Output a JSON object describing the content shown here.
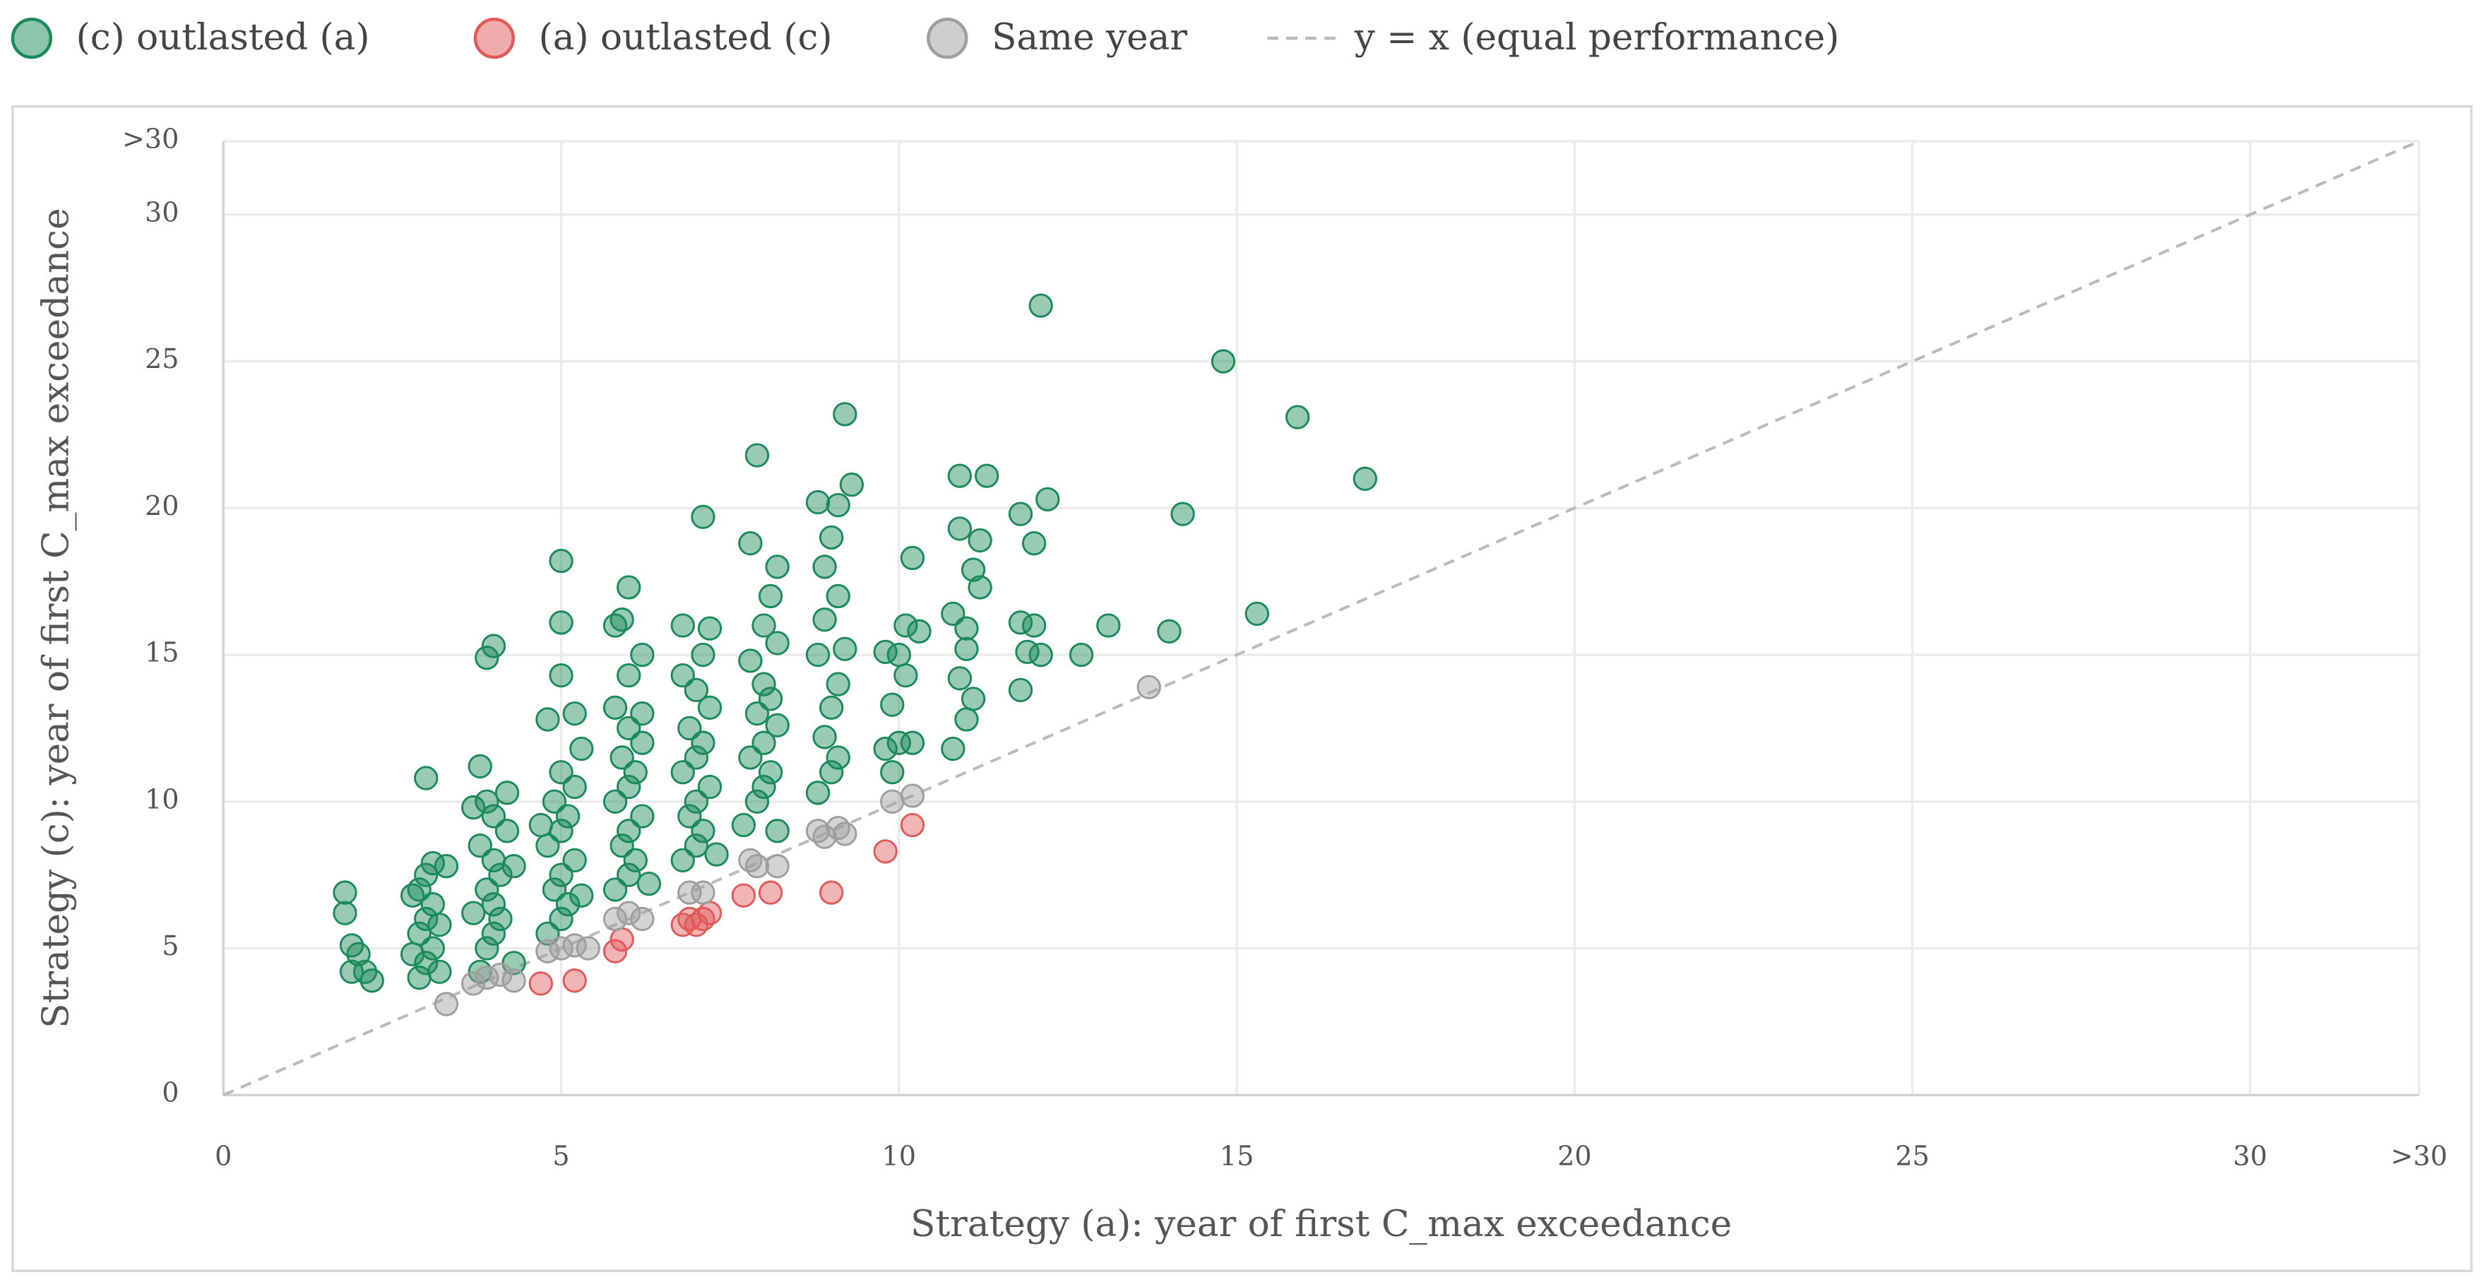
{
  "chart_data": {
    "type": "scatter",
    "xlabel": "Strategy (a): year of first C_max exceedance",
    "ylabel": "Strategy (c): year of first C_max exceedance",
    "xlim": [
      0,
      32.5
    ],
    "ylim": [
      0,
      32.5
    ],
    "xticks": [
      0,
      5,
      10,
      15,
      20,
      25,
      30,
      {
        "value": 32.5,
        "label": ">30"
      }
    ],
    "yticks": [
      0,
      5,
      10,
      15,
      20,
      25,
      30,
      {
        "value": 32.5,
        "label": ">30"
      }
    ],
    "grid": true,
    "legend": "top",
    "reference_line": {
      "label": "y = x (equal performance)",
      "color": "#bbbbbb"
    },
    "series": [
      {
        "name": "(c) outlasted (a)",
        "color": "#1b8a5a",
        "x": [
          1.8,
          1.8,
          1.9,
          1.9,
          2.1,
          2.2,
          2.0,
          2.9,
          3.0,
          3.1,
          2.9,
          3.0,
          3.1,
          2.9,
          3.0,
          3.1,
          3.3,
          3.2,
          2.8,
          3.2,
          2.8,
          3.0,
          3.8,
          3.9,
          4.0,
          4.1,
          4.0,
          3.9,
          4.1,
          4.0,
          3.8,
          4.2,
          4.0,
          3.9,
          4.2,
          3.8,
          3.9,
          4.0,
          4.3,
          3.7,
          4.3,
          3.7,
          4.8,
          5.0,
          5.1,
          4.9,
          5.0,
          5.2,
          4.8,
          5.0,
          5.1,
          4.9,
          5.2,
          5.0,
          5.3,
          4.8,
          5.2,
          5.0,
          5.0,
          5.0,
          5.3,
          4.7,
          5.8,
          6.0,
          6.1,
          5.9,
          6.0,
          6.2,
          5.8,
          6.0,
          6.1,
          5.9,
          6.2,
          6.0,
          5.8,
          6.2,
          6.0,
          6.2,
          5.8,
          5.9,
          6.0,
          6.3,
          6.8,
          7.0,
          7.1,
          6.9,
          7.0,
          7.2,
          6.8,
          7.0,
          7.1,
          6.9,
          7.2,
          7.0,
          6.8,
          7.1,
          6.8,
          7.2,
          7.1,
          7.3,
          7.7,
          7.9,
          8.0,
          8.1,
          7.8,
          8.0,
          8.2,
          7.9,
          8.1,
          8.0,
          7.8,
          8.2,
          8.0,
          8.1,
          8.2,
          7.8,
          7.9,
          8.2,
          8.8,
          9.0,
          9.1,
          8.9,
          9.0,
          9.1,
          8.8,
          9.2,
          8.9,
          9.1,
          8.9,
          9.0,
          8.8,
          9.1,
          9.3,
          9.2,
          9.8,
          10.0,
          10.2,
          9.9,
          10.1,
          10.0,
          9.8,
          10.1,
          10.3,
          10.2,
          9.9,
          10.8,
          11.0,
          11.1,
          10.9,
          11.0,
          10.8,
          11.2,
          11.1,
          11.2,
          10.9,
          10.9,
          11.3,
          11.0,
          11.8,
          11.9,
          12.1,
          11.8,
          12.0,
          11.8,
          12.0,
          12.2,
          12.1,
          12.7,
          13.1,
          14.0,
          14.2,
          14.8,
          15.3,
          15.9,
          16.9
        ],
        "y": [
          6.2,
          6.9,
          5.1,
          4.2,
          4.2,
          3.9,
          4.8,
          4.0,
          4.5,
          5.0,
          5.5,
          6.0,
          6.5,
          7.0,
          7.5,
          7.9,
          7.8,
          4.2,
          4.8,
          5.8,
          6.8,
          10.8,
          4.2,
          5.0,
          5.5,
          6.0,
          6.5,
          7.0,
          7.5,
          8.0,
          8.5,
          9.0,
          9.5,
          10.0,
          10.3,
          11.2,
          14.9,
          15.3,
          4.5,
          6.2,
          7.8,
          9.8,
          5.5,
          6.0,
          6.5,
          7.0,
          7.5,
          8.0,
          8.5,
          9.0,
          9.5,
          10.0,
          10.5,
          11.0,
          11.8,
          12.8,
          13.0,
          14.3,
          16.1,
          18.2,
          6.8,
          9.2,
          7.0,
          7.5,
          8.0,
          8.5,
          9.0,
          9.5,
          10.0,
          10.5,
          11.0,
          11.5,
          12.0,
          12.5,
          13.2,
          13.0,
          14.3,
          15.0,
          16.0,
          16.2,
          17.3,
          7.2,
          8.0,
          8.5,
          9.0,
          9.5,
          10.0,
          10.5,
          11.0,
          11.5,
          12.0,
          12.5,
          13.2,
          13.8,
          14.3,
          15.0,
          16.0,
          15.9,
          19.7,
          8.2,
          9.2,
          10.0,
          10.5,
          11.0,
          11.5,
          12.0,
          12.6,
          13.0,
          13.5,
          14.0,
          14.8,
          15.4,
          16.0,
          17.0,
          18.0,
          18.8,
          21.8,
          9.0,
          10.3,
          11.0,
          11.5,
          12.2,
          13.2,
          14.0,
          15.0,
          15.2,
          16.2,
          17.0,
          18.0,
          19.0,
          20.2,
          20.1,
          20.8,
          23.2,
          11.8,
          12.0,
          12.0,
          13.3,
          14.3,
          15.0,
          15.1,
          16.0,
          15.8,
          18.3,
          11.0,
          11.8,
          12.8,
          13.5,
          14.2,
          15.2,
          16.4,
          17.3,
          17.9,
          18.9,
          19.3,
          21.1,
          21.1,
          15.9,
          13.8,
          15.1,
          15.0,
          16.1,
          16.0,
          19.8,
          18.8,
          20.3,
          26.9,
          15.0,
          16.0,
          15.8,
          19.8,
          25.0,
          16.4,
          23.1,
          21.0
        ]
      },
      {
        "name": "(a) outlasted (c)",
        "color": "#e05a5a",
        "x": [
          4.7,
          5.2,
          5.8,
          5.9,
          6.8,
          6.9,
          7.0,
          7.2,
          7.1,
          7.7,
          8.1,
          9.0,
          9.8,
          10.2
        ],
        "y": [
          3.8,
          3.9,
          4.9,
          5.3,
          5.8,
          6.0,
          5.8,
          6.2,
          6.0,
          6.8,
          6.9,
          6.9,
          8.3,
          9.2
        ]
      },
      {
        "name": "Same year",
        "color": "#9e9e9e",
        "x": [
          3.3,
          3.7,
          3.9,
          4.1,
          4.3,
          4.8,
          5.0,
          5.2,
          5.4,
          5.8,
          6.0,
          6.2,
          6.9,
          7.1,
          7.8,
          7.9,
          8.2,
          8.8,
          8.9,
          9.1,
          9.2,
          9.9,
          10.2,
          13.7
        ],
        "y": [
          3.1,
          3.8,
          4.0,
          4.1,
          3.9,
          4.9,
          5.0,
          5.1,
          5.0,
          6.0,
          6.2,
          6.0,
          6.9,
          6.9,
          8.0,
          7.8,
          7.8,
          9.0,
          8.8,
          9.1,
          8.9,
          10.0,
          10.2,
          13.9
        ]
      }
    ]
  }
}
